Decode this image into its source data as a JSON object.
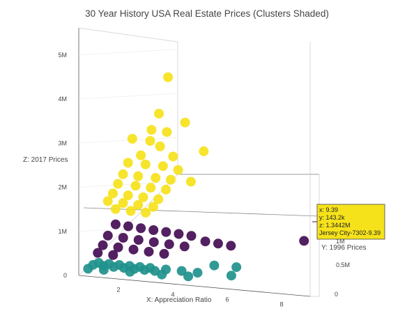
{
  "chart_data": {
    "type": "scatter3d",
    "title": "30 Year History USA Real Estate Prices (Clusters Shaded)",
    "xlabel": "X: Appreciation Ratio",
    "ylabel": "Y:  1996 Prices",
    "zlabel": "Z:  2017 Prices",
    "x_ticks": [
      "2",
      "4",
      "6",
      "8"
    ],
    "y_ticks": [
      "0",
      "0.5M",
      "1M"
    ],
    "z_ticks": [
      "0",
      "1M",
      "2M",
      "3M",
      "4M",
      "5M"
    ],
    "xlim": [
      1,
      9.5
    ],
    "ylim": [
      0,
      1500000
    ],
    "zlim": [
      0,
      5500000
    ],
    "grid": true,
    "colors": {
      "yellow": "#f6e21b",
      "purple": "#440d54",
      "teal": "#21918c"
    },
    "series": [
      {
        "color": "yellow",
        "points": [
          [
            4.5,
            300000,
            5200000
          ],
          [
            4.2,
            350000,
            4200000
          ],
          [
            5.2,
            400000,
            4000000
          ],
          [
            4.0,
            450000,
            3700000
          ],
          [
            4.6,
            500000,
            3650000
          ],
          [
            3.2,
            320000,
            3500000
          ],
          [
            3.9,
            380000,
            3450000
          ],
          [
            4.3,
            430000,
            3300000
          ],
          [
            3.5,
            300000,
            3100000
          ],
          [
            4.8,
            460000,
            3050000
          ],
          [
            3.0,
            260000,
            2900000
          ],
          [
            3.7,
            340000,
            2850000
          ],
          [
            4.4,
            420000,
            2800000
          ],
          [
            5.0,
            480000,
            2700000
          ],
          [
            2.8,
            240000,
            2600000
          ],
          [
            3.4,
            300000,
            2550000
          ],
          [
            4.1,
            380000,
            2500000
          ],
          [
            4.7,
            440000,
            2450000
          ],
          [
            2.6,
            220000,
            2350000
          ],
          [
            3.3,
            290000,
            2300000
          ],
          [
            3.9,
            350000,
            2250000
          ],
          [
            4.5,
            410000,
            2200000
          ],
          [
            2.4,
            200000,
            2100000
          ],
          [
            3.0,
            260000,
            2050000
          ],
          [
            3.6,
            320000,
            2000000
          ],
          [
            4.2,
            380000,
            1950000
          ],
          [
            2.2,
            180000,
            1900000
          ],
          [
            2.8,
            240000,
            1850000
          ],
          [
            3.4,
            300000,
            1800000
          ],
          [
            4.0,
            360000,
            1750000
          ],
          [
            2.5,
            200000,
            1700000
          ],
          [
            3.1,
            260000,
            1650000
          ],
          [
            3.7,
            330000,
            1600000
          ],
          [
            5.5,
            520000,
            2400000
          ],
          [
            6.0,
            560000,
            3200000
          ]
        ]
      },
      {
        "color": "purple",
        "points": [
          [
            9.39,
            143200,
            1344200
          ],
          [
            2.5,
            200000,
            1300000
          ],
          [
            3.0,
            250000,
            1250000
          ],
          [
            3.5,
            300000,
            1200000
          ],
          [
            4.0,
            350000,
            1150000
          ],
          [
            4.5,
            400000,
            1100000
          ],
          [
            5.0,
            450000,
            1050000
          ],
          [
            5.5,
            500000,
            1000000
          ],
          [
            2.2,
            180000,
            1000000
          ],
          [
            2.8,
            230000,
            950000
          ],
          [
            3.4,
            280000,
            900000
          ],
          [
            4.0,
            330000,
            850000
          ],
          [
            4.6,
            380000,
            800000
          ],
          [
            5.2,
            430000,
            750000
          ],
          [
            2.0,
            160000,
            750000
          ],
          [
            2.6,
            210000,
            700000
          ],
          [
            3.2,
            260000,
            650000
          ],
          [
            3.8,
            310000,
            600000
          ],
          [
            4.4,
            360000,
            550000
          ],
          [
            6.0,
            480000,
            900000
          ],
          [
            6.5,
            520000,
            850000
          ],
          [
            7.0,
            560000,
            800000
          ],
          [
            1.8,
            140000,
            550000
          ],
          [
            2.4,
            190000,
            500000
          ]
        ]
      },
      {
        "color": "teal",
        "points": [
          [
            1.6,
            100000,
            250000
          ],
          [
            2.0,
            130000,
            230000
          ],
          [
            2.4,
            160000,
            210000
          ],
          [
            2.8,
            190000,
            190000
          ],
          [
            3.2,
            220000,
            170000
          ],
          [
            3.6,
            250000,
            150000
          ],
          [
            4.0,
            280000,
            130000
          ],
          [
            1.8,
            90000,
            320000
          ],
          [
            2.2,
            120000,
            300000
          ],
          [
            2.6,
            150000,
            280000
          ],
          [
            3.0,
            180000,
            260000
          ],
          [
            3.4,
            210000,
            240000
          ],
          [
            3.8,
            240000,
            220000
          ],
          [
            4.4,
            270000,
            200000
          ],
          [
            5.0,
            300000,
            180000
          ],
          [
            5.6,
            320000,
            160000
          ],
          [
            6.2,
            300000,
            400000
          ],
          [
            7.0,
            280000,
            420000
          ],
          [
            6.8,
            260000,
            200000
          ],
          [
            1.4,
            80000,
            150000
          ],
          [
            2.0,
            110000,
            140000
          ],
          [
            3.0,
            160000,
            120000
          ],
          [
            4.2,
            200000,
            100000
          ],
          [
            5.2,
            240000,
            90000
          ]
        ]
      }
    ],
    "tooltip": {
      "lines": [
        "x: 9.39",
        "y: 143.2k",
        "z: 1.3442M",
        "Jersey City-7302-9.39"
      ]
    }
  }
}
